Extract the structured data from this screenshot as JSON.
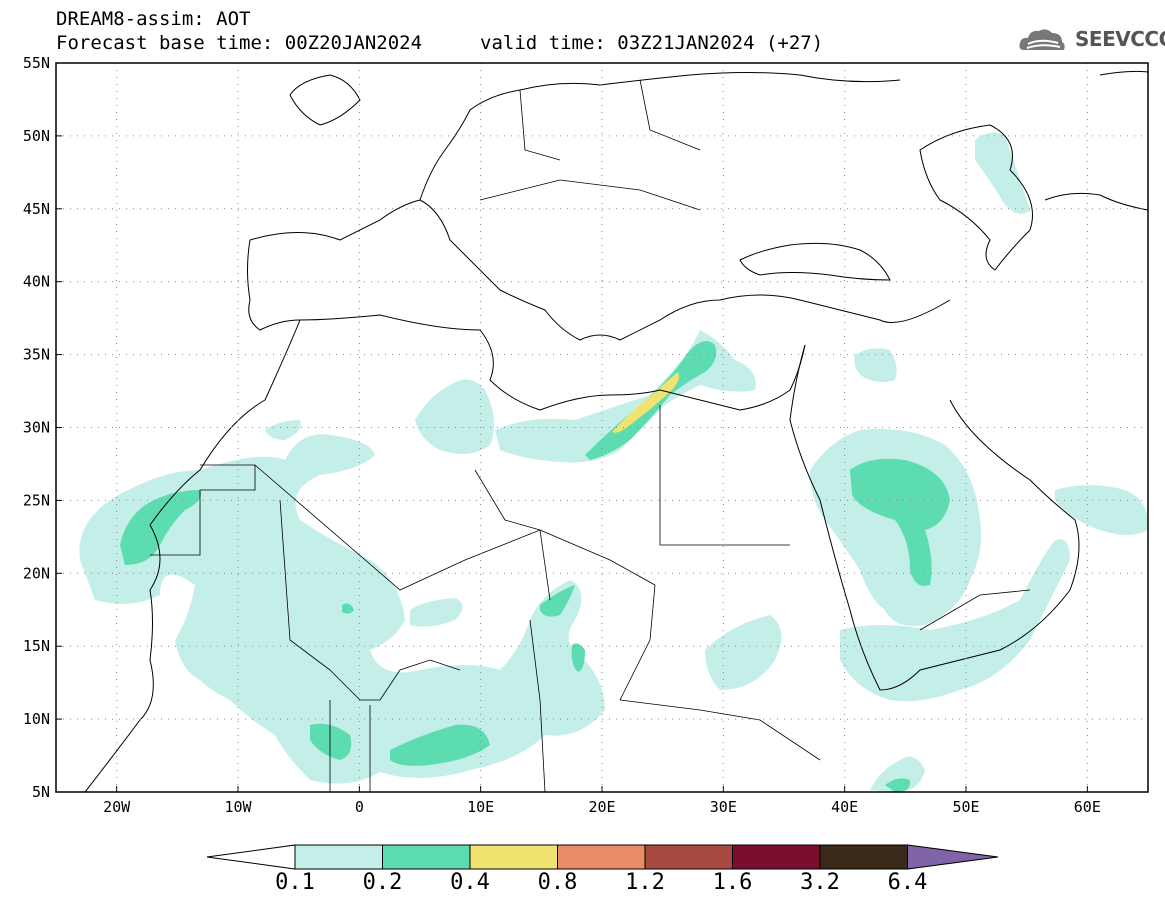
{
  "header": {
    "title": "DREAM8-assim: AOT",
    "base_time": "Forecast base time: 00Z20JAN2024",
    "valid_time": "valid time: 03Z21JAN2024 (+27)"
  },
  "logo": {
    "text": "SEEVCCC",
    "icon": "cloud-icon"
  },
  "map": {
    "lon_range": [
      -25,
      65
    ],
    "lat_range": [
      5,
      55
    ],
    "lat_ticks": [
      "55N",
      "50N",
      "45N",
      "40N",
      "35N",
      "30N",
      "25N",
      "20N",
      "15N",
      "10N",
      "5N"
    ],
    "lon_ticks": [
      "20W",
      "10W",
      "0",
      "10E",
      "20E",
      "30E",
      "40E",
      "50E",
      "60E"
    ],
    "grid": "dotted"
  },
  "legend": {
    "labels": [
      "0.1",
      "0.2",
      "0.4",
      "0.8",
      "1.2",
      "1.6",
      "3.2",
      "6.4"
    ],
    "colors": [
      "#ffffff",
      "#c4efe9",
      "#5cdcb0",
      "#f0e370",
      "#e98c67",
      "#a84a40",
      "#7a0e2c",
      "#3b2a1a",
      "#7f64a8"
    ]
  },
  "colors": {
    "low": "#c4efe9",
    "mid": "#5cdcb0",
    "high": "#f0e370"
  }
}
